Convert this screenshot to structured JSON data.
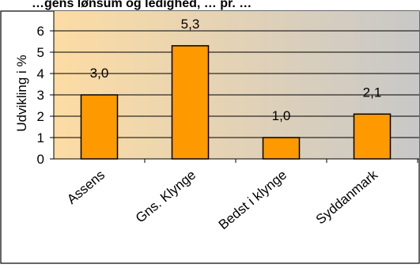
{
  "chart_data": {
    "type": "bar",
    "title": "…gens lønsum og ledighed, … pr. …",
    "categories": [
      "Assens",
      "Gns. Klynge",
      "Bedst i klynge",
      "Syddanmark"
    ],
    "values": [
      3.0,
      5.3,
      1.0,
      2.1
    ],
    "value_labels": [
      "3,0",
      "5,3",
      "1,0",
      "2,1"
    ],
    "ylabel": "Udvikling i %",
    "xlabel": "",
    "ylim": [
      0,
      6
    ],
    "yticks": [
      "0",
      "1",
      "2",
      "3",
      "4",
      "5",
      "6"
    ],
    "grid": true,
    "legend": "none"
  },
  "colors": {
    "bar_fill": "#FF9900",
    "bar_stroke": "#000000",
    "plot_gradient_start": "#FDDCA3",
    "plot_gradient_end": "#C8C8C8"
  }
}
